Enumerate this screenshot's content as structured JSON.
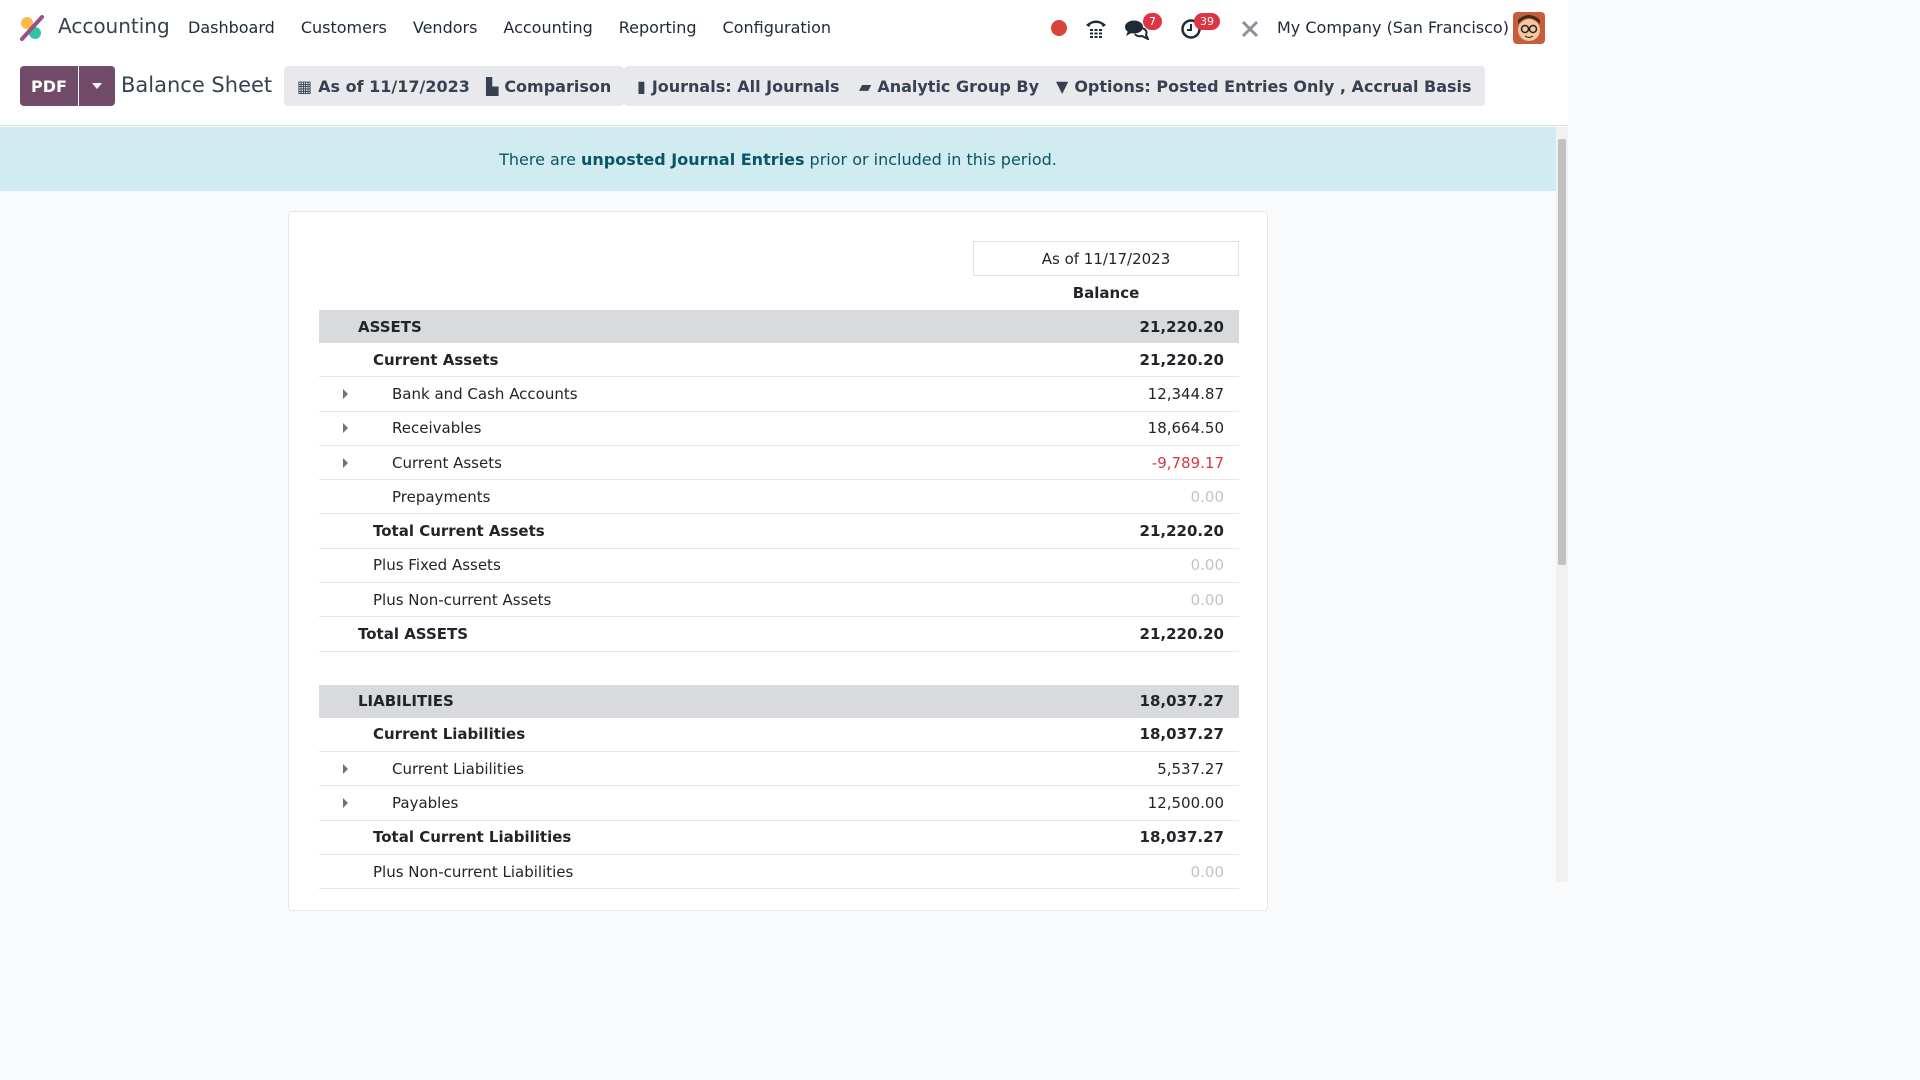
{
  "app": {
    "name": "Accounting",
    "menu": [
      "Dashboard",
      "Customers",
      "Vendors",
      "Accounting",
      "Reporting",
      "Configuration"
    ],
    "company": "My Company (San Francisco)",
    "badges": {
      "messages": "7",
      "activities": "39"
    }
  },
  "control": {
    "pdf": "PDF",
    "title": "Balance Sheet",
    "filters": [
      "As of 11/17/2023",
      "Comparison",
      "Journals: All Journals",
      "Analytic Group By",
      "Options: Posted Entries Only , Accrual Basis"
    ]
  },
  "alert": {
    "before": "There are ",
    "link": "unposted Journal Entries",
    "after": " prior or included in this period."
  },
  "report": {
    "column_period": "As of 11/17/2023",
    "column_label": "Balance",
    "rows": [
      {
        "type": "sec",
        "label": "ASSETS",
        "value": "21,220.20"
      },
      {
        "type": "b",
        "level": 1,
        "label": "Current Assets",
        "value": "21,220.20"
      },
      {
        "type": "n",
        "level": 2,
        "caret": true,
        "label": "Bank and Cash Accounts",
        "value": "12,344.87"
      },
      {
        "type": "n",
        "level": 2,
        "caret": true,
        "label": "Receivables",
        "value": "18,664.50"
      },
      {
        "type": "n",
        "level": 2,
        "caret": true,
        "label": "Current Assets",
        "value": "-9,789.17",
        "style": "neg"
      },
      {
        "type": "n",
        "level": 2,
        "label": "Prepayments",
        "value": "0.00",
        "style": "zero"
      },
      {
        "type": "b",
        "level": 1,
        "label": "Total Current Assets",
        "value": "21,220.20"
      },
      {
        "type": "n",
        "level": 1,
        "label": "Plus Fixed Assets",
        "value": "0.00",
        "style": "zero"
      },
      {
        "type": "n",
        "level": 1,
        "label": "Plus Non-current Assets",
        "value": "0.00",
        "style": "zero"
      },
      {
        "type": "b",
        "level": 0,
        "label": "Total ASSETS",
        "value": "21,220.20"
      },
      {
        "type": "spacer"
      },
      {
        "type": "sec",
        "label": "LIABILITIES",
        "value": "18,037.27"
      },
      {
        "type": "b",
        "level": 1,
        "label": "Current Liabilities",
        "value": "18,037.27"
      },
      {
        "type": "n",
        "level": 2,
        "caret": true,
        "label": "Current Liabilities",
        "value": "5,537.27"
      },
      {
        "type": "n",
        "level": 2,
        "caret": true,
        "label": "Payables",
        "value": "12,500.00"
      },
      {
        "type": "b",
        "level": 1,
        "label": "Total Current Liabilities",
        "value": "18,037.27"
      },
      {
        "type": "n",
        "level": 1,
        "label": "Plus Non-current Liabilities",
        "value": "0.00",
        "style": "zero"
      }
    ]
  },
  "colors": {
    "brand": "#714b67",
    "alert_bg": "#d1ecf1",
    "negative": "#dc3545"
  }
}
